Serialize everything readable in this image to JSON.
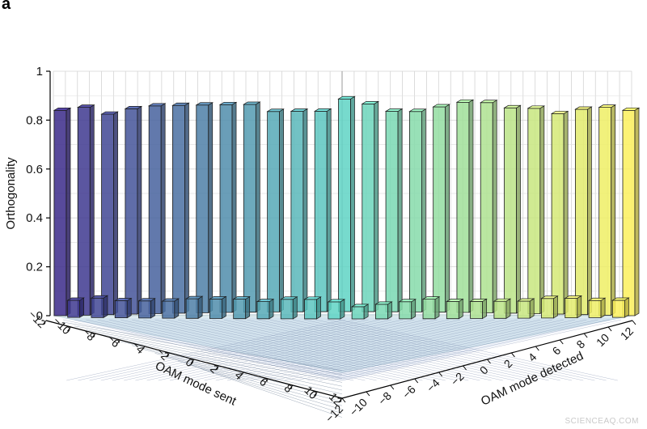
{
  "panel_label": "a",
  "watermark": "SCIENCEAQ.COM",
  "chart_data": {
    "type": "bar3d",
    "title": "",
    "zlabel": "Orthogonality",
    "xlabel": "OAM mode sent",
    "ylabel": "OAM mode detected",
    "zlim": [
      0,
      1
    ],
    "z_ticks": [
      "0",
      "0.2",
      "0.4",
      "0.6",
      "0.8",
      "1"
    ],
    "sent_tick_labels": [
      "−12",
      "−10",
      "−8",
      "−6",
      "−4",
      "−2",
      "0",
      "2",
      "4",
      "6",
      "8",
      "10",
      "12"
    ],
    "detected_tick_labels": [
      "−12",
      "−10",
      "−8",
      "−6",
      "−4",
      "−2",
      "0",
      "2",
      "4",
      "6",
      "8",
      "10",
      "12"
    ],
    "modes": [
      -12,
      -11,
      -10,
      -9,
      -8,
      -7,
      -6,
      -5,
      -4,
      -3,
      -2,
      -1,
      0,
      1,
      2,
      3,
      4,
      5,
      6,
      7,
      8,
      9,
      10,
      11,
      12
    ],
    "diagonal_values": [
      0.84,
      0.85,
      0.82,
      0.84,
      0.85,
      0.85,
      0.85,
      0.85,
      0.85,
      0.82,
      0.82,
      0.82,
      0.87,
      0.85,
      0.82,
      0.82,
      0.84,
      0.86,
      0.86,
      0.84,
      0.84,
      0.82,
      0.84,
      0.85,
      0.84
    ],
    "crosstalk_nearest_values": [
      0.07,
      0.08,
      0.07,
      0.07,
      0.07,
      0.08,
      0.08,
      0.08,
      0.07,
      0.08,
      0.08,
      0.07,
      0.05,
      0.06,
      0.07,
      0.08,
      0.07,
      0.07,
      0.07,
      0.07,
      0.08,
      0.08,
      0.07,
      0.07
    ],
    "off_diagonal_background": 0.005,
    "grid": true,
    "colormap_start": "#3b2a8a",
    "colormap_mid": "#5fd3c4",
    "colormap_end": "#fcf05c"
  }
}
